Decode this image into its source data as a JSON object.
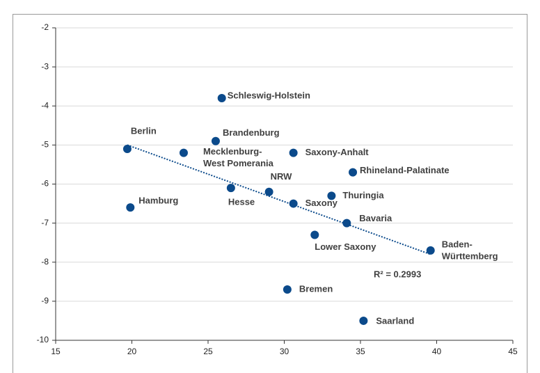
{
  "chart_data": {
    "type": "scatter",
    "color": "#0b4a8b",
    "xlim": [
      15,
      45
    ],
    "xticks": [
      15,
      20,
      25,
      30,
      35,
      40,
      45
    ],
    "ylim": [
      -10,
      -2
    ],
    "yticks": [
      -2,
      -3,
      -4,
      -5,
      -6,
      -7,
      -8,
      -9,
      -10
    ],
    "grid": true,
    "labels": [
      [
        "Berlin"
      ],
      [
        "Hamburg"
      ],
      [
        "Mecklenburg-",
        "West Pomerania"
      ],
      [
        "Brandenburg"
      ],
      [
        "Schleswig-Holstein"
      ],
      [
        "Hesse"
      ],
      [
        "NRW"
      ],
      [
        "Saxony-Anhalt"
      ],
      [
        "Saxony"
      ],
      [
        "Bremen"
      ],
      [
        "Lower Saxony"
      ],
      [
        "Thuringia"
      ],
      [
        "Bavaria"
      ],
      [
        "Rhineland-Palatinate"
      ],
      [
        "Saarland"
      ],
      [
        "Baden-",
        "Württemberg"
      ]
    ],
    "x": [
      19.7,
      19.9,
      23.4,
      25.5,
      25.9,
      26.5,
      29.0,
      30.6,
      30.6,
      30.2,
      32.0,
      33.1,
      34.1,
      34.5,
      35.2,
      39.6
    ],
    "values": [
      -5.1,
      -6.6,
      -5.2,
      -4.9,
      -3.8,
      -6.1,
      -6.2,
      -5.2,
      -6.5,
      -8.7,
      -7.3,
      -6.3,
      -7.0,
      -5.7,
      -9.5,
      -7.7
    ],
    "trendline": {
      "x": [
        19.7,
        39.6
      ],
      "values": [
        -5.0,
        -7.8
      ]
    },
    "annotation": "R² = 0.2993"
  }
}
